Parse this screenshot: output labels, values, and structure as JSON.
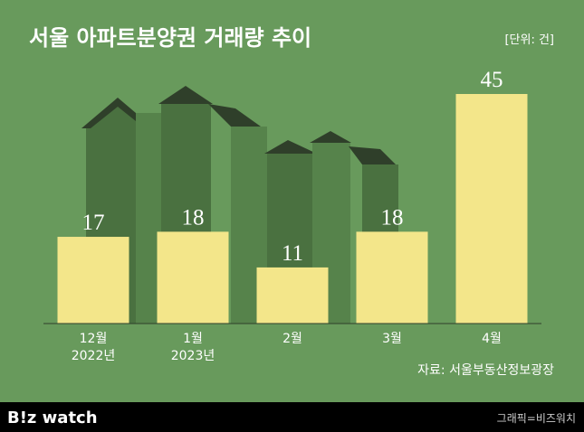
{
  "chart_data": {
    "type": "bar",
    "title": "서울 아파트분양권 거래량 추이",
    "unit_note": "[단위: 건]",
    "categories": [
      "12월\n2022년",
      "1월\n2023년",
      "2월",
      "3월",
      "4월"
    ],
    "values": [
      17,
      18,
      11,
      18,
      45
    ],
    "color": "#f3e68a",
    "source": "자료: 서울부동산정보광장"
  },
  "footer": {
    "logo": "B!z watch",
    "credit": "그래픽=비즈워치"
  }
}
